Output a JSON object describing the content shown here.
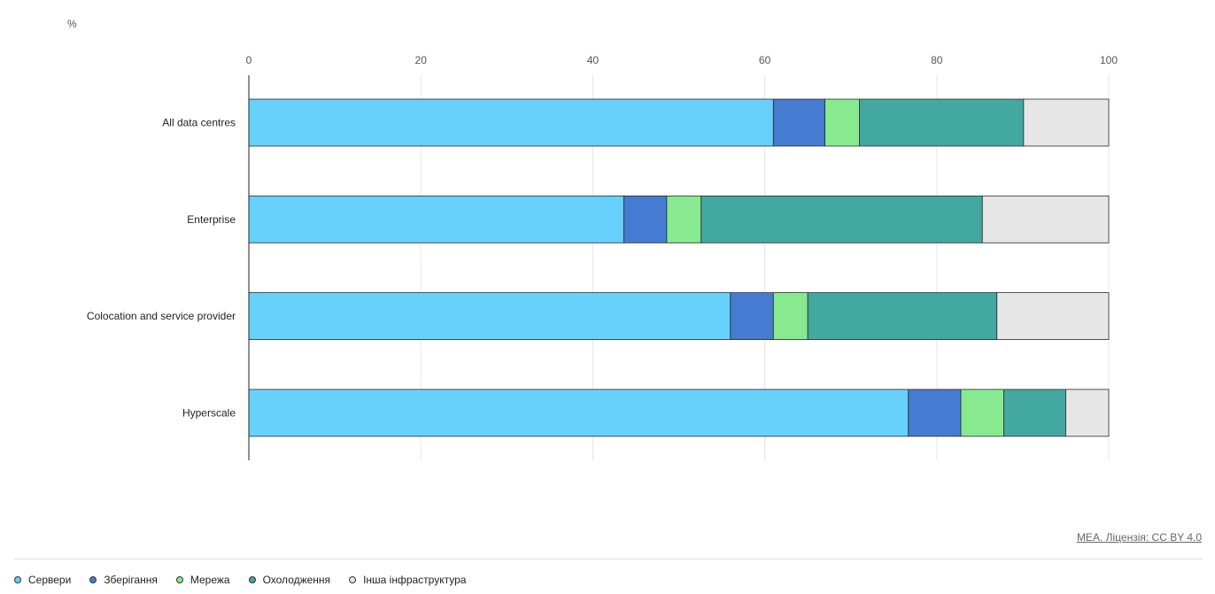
{
  "unit_label": "%",
  "credit": "МЕА. Ліцензія: CC BY 4.0",
  "legend": [
    {
      "label": "Сервери",
      "color": "#66d1fb"
    },
    {
      "label": "Зберігання",
      "color": "#457bd0"
    },
    {
      "label": "Мережа",
      "color": "#87ea91"
    },
    {
      "label": "Охолодження",
      "color": "#42a8a0"
    },
    {
      "label": "Інша інфраструктура",
      "color": "#e6e6e6"
    }
  ],
  "chart_data": {
    "type": "bar",
    "orientation": "horizontal",
    "stacked": true,
    "categories": [
      "All data centres",
      "Enterprise",
      "Colocation and service provider",
      "Hyperscale"
    ],
    "series": [
      {
        "name": "Сервери",
        "color": "#66d1fb",
        "values": [
          61,
          43.6,
          56,
          76.7
        ]
      },
      {
        "name": "Зберігання",
        "color": "#457bd0",
        "values": [
          6,
          5,
          5,
          6.1
        ]
      },
      {
        "name": "Мережа",
        "color": "#87ea91",
        "values": [
          4,
          4,
          4,
          5
        ]
      },
      {
        "name": "Охолодження",
        "color": "#42a8a0",
        "values": [
          19.1,
          32.7,
          22,
          7.2
        ]
      },
      {
        "name": "Інша інфраструктура",
        "color": "#e6e6e6",
        "values": [
          9.9,
          14.7,
          13,
          5
        ]
      }
    ],
    "xlim": [
      0,
      100
    ],
    "xticks": [
      0,
      20,
      40,
      60,
      80,
      100
    ],
    "grid": true,
    "legend_position": "bottom"
  }
}
